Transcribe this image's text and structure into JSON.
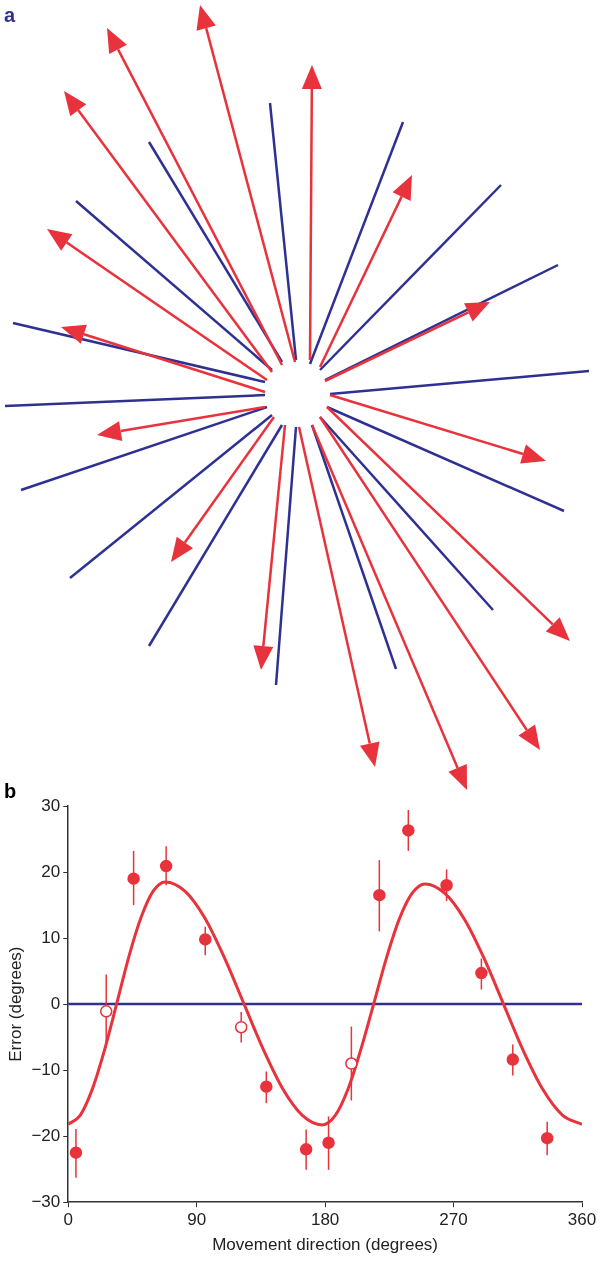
{
  "chart_data": [
    {
      "type": "other",
      "title": "a"
    },
    {
      "type": "scatter",
      "title": "b",
      "xlabel": "Movement direction (degrees)",
      "ylabel": "Error (degrees)",
      "xlim": [
        0,
        360
      ],
      "xticks": [
        0,
        90,
        180,
        270,
        360
      ],
      "ylim": [
        -30,
        30
      ],
      "yticks": [
        -30,
        -20,
        -10,
        0,
        10,
        20,
        30
      ],
      "grid": false,
      "legend": false,
      "marker": "circle",
      "ref_lines": [
        {
          "axis": "y",
          "value": 0,
          "color": "#2e3192"
        }
      ],
      "series": [
        {
          "type": "scatter",
          "color": "#e8323c",
          "x": [
            5.4,
            45.8,
            68.6,
            96,
            138.8,
            166.7,
            182.4,
            218,
            238.3,
            265.1,
            289.5,
            311.5,
            335.6
          ],
          "values": [
            -22.5,
            19.0,
            20.9,
            9.8,
            -12.5,
            -22.0,
            -21.0,
            16.5,
            26.3,
            18.0,
            4.7,
            -8.4,
            -20.3
          ],
          "errors": [
            [
              -26.3,
              -18.9
            ],
            [
              15.0,
              23.2
            ],
            [
              18.0,
              23.9
            ],
            [
              7.4,
              11.7
            ],
            [
              -15.0,
              -10.2
            ],
            [
              -25.1,
              -19.0
            ],
            [
              -25.1,
              -17.0
            ],
            [
              11.0,
              21.8
            ],
            [
              23.2,
              29.4
            ],
            [
              15.6,
              20.4
            ],
            [
              2.2,
              6.9
            ],
            [
              -10.8,
              -6.1
            ],
            [
              -22.9,
              -17.8
            ]
          ]
        },
        {
          "type": "scatter",
          "color": "#e8323c",
          "x": [
            26.6,
            121.2,
            198.4
          ],
          "values": [
            -1.1,
            -3.5,
            -9.0
          ],
          "errors": [
            [
              -6.6,
              4.5
            ],
            [
              -5.8,
              -1.2
            ],
            [
              -14.6,
              -3.4
            ]
          ]
        },
        {
          "type": "line",
          "color": "#e8323c",
          "marker": "none",
          "x": [
            0,
            8.5,
            17,
            25.5,
            34,
            42.5,
            51,
            59.5,
            68,
            81.75,
            95.5,
            109.25,
            123,
            136.75,
            150.5,
            164.25,
            178,
            187,
            196,
            205,
            214,
            223,
            232,
            241,
            250,
            263.75,
            277.5,
            291.25,
            305,
            318.75,
            332.5,
            346.25,
            360
          ],
          "values": [
            -18.2,
            -16.8,
            -12.8,
            -6.9,
            0.1,
            7.2,
            13.1,
            17.1,
            18.5,
            17.1,
            13.1,
            7.1,
            0.1,
            -6.9,
            -12.9,
            -16.9,
            -18.3,
            -16.9,
            -12.9,
            -6.9,
            0,
            7.0,
            12.9,
            16.8,
            18.2,
            16.8,
            12.9,
            7.0,
            0,
            -7.0,
            -12.9,
            -16.8,
            -18.2
          ]
        }
      ]
    }
  ]
}
